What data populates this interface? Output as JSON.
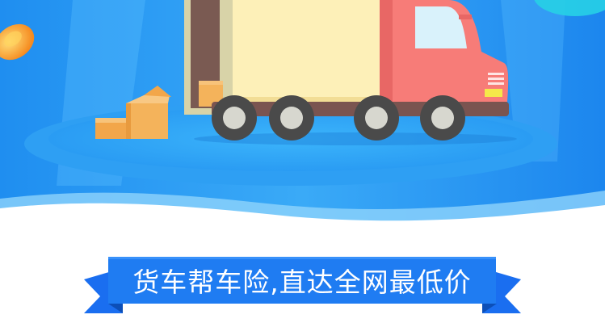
{
  "banner": {
    "text": "货车帮车险,直达全网最低价"
  },
  "colors": {
    "sky_blue": "#3ea8f5",
    "ribbon_blue": "#1a6ef0",
    "truck_cab": "#f77c78",
    "cargo_box": "#fdf0b8",
    "package": "#f4b35b"
  },
  "icons": [
    "truck-illustration",
    "cardboard-box-icon",
    "coin-icon"
  ]
}
